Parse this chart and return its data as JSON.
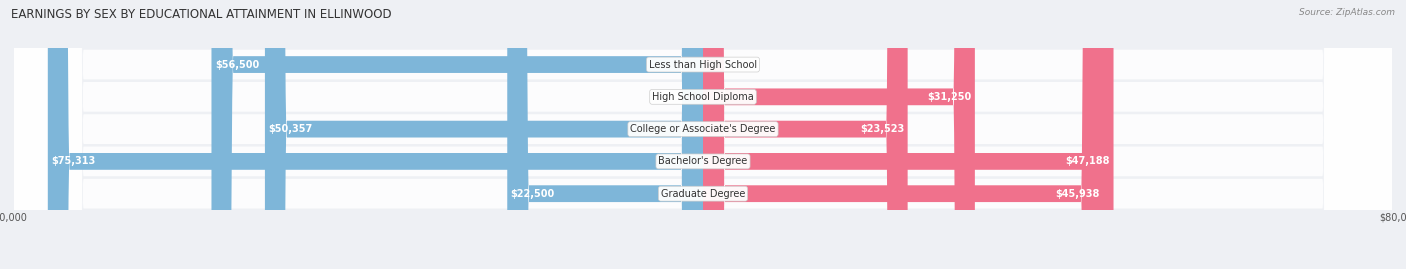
{
  "title": "EARNINGS BY SEX BY EDUCATIONAL ATTAINMENT IN ELLINWOOD",
  "source": "Source: ZipAtlas.com",
  "categories": [
    "Less than High School",
    "High School Diploma",
    "College or Associate's Degree",
    "Bachelor's Degree",
    "Graduate Degree"
  ],
  "male_values": [
    56500,
    0,
    50357,
    75313,
    22500
  ],
  "female_values": [
    0,
    31250,
    23523,
    47188,
    45938
  ],
  "male_color": "#7EB6D9",
  "female_color": "#F0718C",
  "male_color_light": "#B8D4EA",
  "female_color_light": "#F9AABC",
  "max_value": 80000,
  "bar_height": 0.52,
  "background_color": "#eef0f4",
  "row_color_light": "#f5f6f8",
  "title_fontsize": 8.5,
  "label_fontsize": 7.0,
  "tick_fontsize": 7.0,
  "source_fontsize": 6.5
}
